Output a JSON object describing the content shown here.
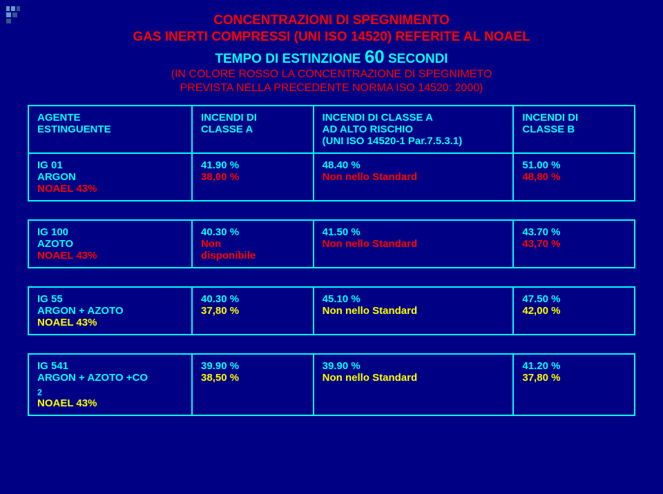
{
  "title": {
    "line1": "CONCENTRAZIONI DI SPEGNIMENTO",
    "line2": "GAS INERTI COMPRESSI (UNI ISO 14520) REFERITE AL NOAEL",
    "line3a": "TEMPO DI ESTINZIONE ",
    "line3b": "60",
    "line3c": " SECONDI",
    "line4": "(IN COLORE ROSSO LA CONCENTRAZIONE DI SPEGNIMETO",
    "line5": "PREVISTA NELLA PRECEDENTE NORMA ISO 14520: 2000)"
  },
  "headers": {
    "agent1": "AGENTE",
    "agent2": "ESTINGUENTE",
    "colA1": "INCENDI DI",
    "colA2": "CLASSE A",
    "colAR1": "INCENDI DI CLASSE A",
    "colAR2": "AD ALTO RISCHIO",
    "colAR3": "(UNI ISO 14520-1 Par.7.5.3.1)",
    "colB1": "INCENDI DI",
    "colB2": "CLASSE B"
  },
  "rows": [
    {
      "name1": "IG 01",
      "name2": "ARGON",
      "noael": "NOAEL 43%",
      "noael_color": "red",
      "a1": "41.90 %",
      "a2": "38,00 %",
      "ar1": "48.40 %",
      "ar2": "Non nello Standard",
      "b1": "51.00 %",
      "b2": "48,80 %"
    },
    {
      "name1": "IG 100",
      "name2": "AZOTO",
      "noael": "NOAEL 43%",
      "noael_color": "red",
      "a1": "40.30 %",
      "a2": "Non",
      "a3": "disponibile",
      "ar1": "41.50 %",
      "ar2": "Non nello Standard",
      "b1": "43.70 %",
      "b2": "43,70 %"
    },
    {
      "name1": "IG 55",
      "name2": "ARGON + AZOTO",
      "noael": "NOAEL 43%",
      "noael_color": "yellow",
      "a1": "40.30 %",
      "a2": "37,80 %",
      "ar1": "45.10 %",
      "ar2": "Non nello Standard",
      "b1": "47.50 %",
      "b2": "42,00 %"
    },
    {
      "name1": "IG 541",
      "name2": "ARGON + AZOTO +CO",
      "name2_sub": "2",
      "noael": "NOAEL 43%",
      "noael_color": "yellow",
      "a1": "39.90 %",
      "a2": "38,50 %",
      "ar1": "39.90 %",
      "ar2": "Non nello Standard",
      "b1": "41.20 %",
      "b2": "37,80 %"
    }
  ]
}
